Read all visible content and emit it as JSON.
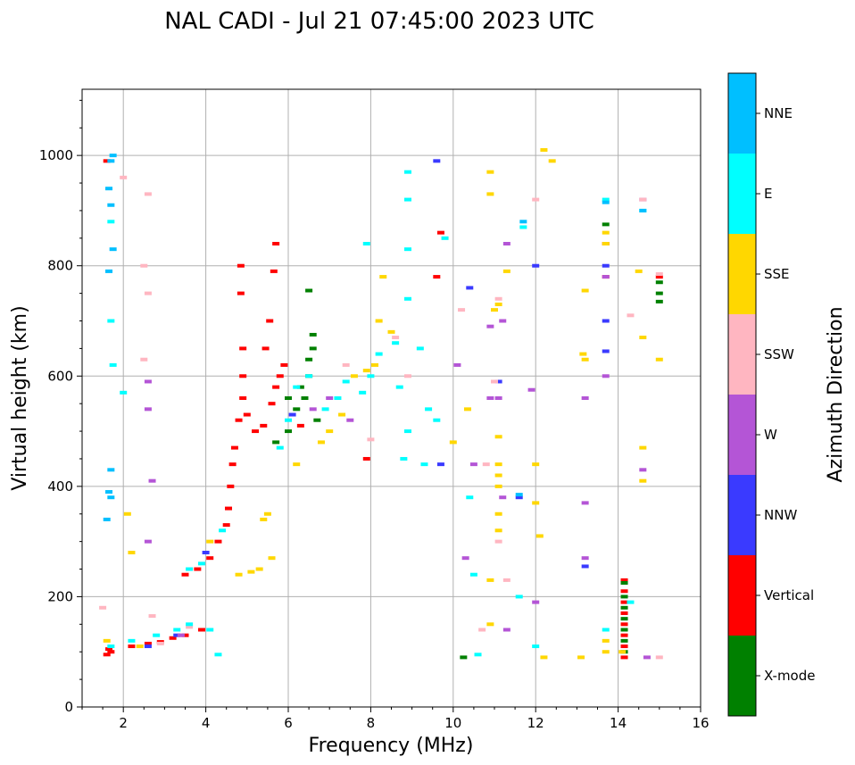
{
  "chart_data": {
    "type": "scatter",
    "title": "NAL CADI - Jul 21 07:45:00 2023 UTC",
    "xlabel": "Frequency (MHz)",
    "ylabel": "Virtual height (km)",
    "xlim": [
      1,
      16
    ],
    "ylim": [
      0,
      1120
    ],
    "xticks": [
      2,
      4,
      6,
      8,
      10,
      12,
      14,
      16
    ],
    "yticks": [
      0,
      200,
      400,
      600,
      800,
      1000
    ],
    "grid": true,
    "colorbar": {
      "title": "Azimuth Direction",
      "categories": [
        {
          "name": "X-mode",
          "color": "#008000"
        },
        {
          "name": "Vertical",
          "color": "#ff0000"
        },
        {
          "name": "NNW",
          "color": "#3a3aff"
        },
        {
          "name": "W",
          "color": "#b455d6"
        },
        {
          "name": "SSW",
          "color": "#ffb6c1"
        },
        {
          "name": "SSE",
          "color": "#ffd700"
        },
        {
          "name": "E",
          "color": "#00ffff"
        },
        {
          "name": "NNE",
          "color": "#00bfff"
        }
      ]
    },
    "series": [
      {
        "name": "Vertical",
        "points": [
          [
            1.6,
            95
          ],
          [
            1.65,
            105
          ],
          [
            1.7,
            100
          ],
          [
            2.2,
            110
          ],
          [
            2.6,
            115
          ],
          [
            2.9,
            118
          ],
          [
            3.2,
            125
          ],
          [
            3.5,
            130
          ],
          [
            3.9,
            140
          ],
          [
            3.5,
            240
          ],
          [
            3.8,
            250
          ],
          [
            4.1,
            270
          ],
          [
            4.3,
            300
          ],
          [
            4.5,
            330
          ],
          [
            4.55,
            360
          ],
          [
            4.6,
            400
          ],
          [
            4.65,
            440
          ],
          [
            4.7,
            470
          ],
          [
            4.8,
            520
          ],
          [
            4.9,
            560
          ],
          [
            4.9,
            600
          ],
          [
            4.9,
            650
          ],
          [
            4.85,
            750
          ],
          [
            4.85,
            800
          ],
          [
            5.0,
            530
          ],
          [
            5.2,
            500
          ],
          [
            5.4,
            510
          ],
          [
            5.6,
            550
          ],
          [
            5.7,
            580
          ],
          [
            5.8,
            600
          ],
          [
            5.9,
            620
          ],
          [
            5.45,
            650
          ],
          [
            5.55,
            700
          ],
          [
            5.65,
            790
          ],
          [
            5.7,
            840
          ],
          [
            6.3,
            510
          ],
          [
            7.9,
            450
          ],
          [
            9.7,
            860
          ],
          [
            9.6,
            780
          ],
          [
            1.6,
            990
          ],
          [
            13.7,
            840
          ],
          [
            13.7,
            780
          ],
          [
            14.15,
            230
          ],
          [
            14.15,
            210
          ],
          [
            14.15,
            190
          ],
          [
            14.15,
            170
          ],
          [
            14.15,
            150
          ],
          [
            14.15,
            130
          ],
          [
            14.15,
            110
          ],
          [
            14.15,
            90
          ],
          [
            15.0,
            780
          ]
        ]
      },
      {
        "name": "X-mode",
        "points": [
          [
            5.7,
            480
          ],
          [
            6.0,
            500
          ],
          [
            6.2,
            540
          ],
          [
            6.4,
            560
          ],
          [
            6.5,
            600
          ],
          [
            6.5,
            630
          ],
          [
            6.6,
            650
          ],
          [
            6.6,
            675
          ],
          [
            6.5,
            755
          ],
          [
            6.0,
            560
          ],
          [
            6.3,
            580
          ],
          [
            6.7,
            520
          ],
          [
            10.25,
            90
          ],
          [
            13.7,
            875
          ],
          [
            14.15,
            225
          ],
          [
            14.15,
            200
          ],
          [
            14.15,
            180
          ],
          [
            14.15,
            160
          ],
          [
            14.15,
            140
          ],
          [
            14.15,
            120
          ],
          [
            14.15,
            100
          ],
          [
            15.0,
            770
          ],
          [
            15.0,
            750
          ],
          [
            15.0,
            735
          ]
        ]
      },
      {
        "name": "NNW",
        "points": [
          [
            2.6,
            110
          ],
          [
            3.3,
            130
          ],
          [
            4.0,
            280
          ],
          [
            6.1,
            530
          ],
          [
            9.7,
            440
          ],
          [
            10.4,
            760
          ],
          [
            11.1,
            590
          ],
          [
            11.6,
            380
          ],
          [
            13.2,
            255
          ],
          [
            13.7,
            800
          ],
          [
            13.7,
            700
          ],
          [
            13.7,
            645
          ],
          [
            12.0,
            800
          ],
          [
            9.6,
            990
          ]
        ]
      },
      {
        "name": "W",
        "points": [
          [
            2.6,
            590
          ],
          [
            2.6,
            540
          ],
          [
            2.6,
            300
          ],
          [
            2.7,
            410
          ],
          [
            3.4,
            130
          ],
          [
            6.6,
            540
          ],
          [
            7.0,
            560
          ],
          [
            7.5,
            520
          ],
          [
            10.1,
            620
          ],
          [
            10.5,
            440
          ],
          [
            10.3,
            270
          ],
          [
            10.9,
            690
          ],
          [
            10.9,
            560
          ],
          [
            11.1,
            560
          ],
          [
            11.3,
            140
          ],
          [
            11.2,
            700
          ],
          [
            11.9,
            575
          ],
          [
            12.0,
            190
          ],
          [
            13.2,
            560
          ],
          [
            13.2,
            370
          ],
          [
            13.7,
            600
          ],
          [
            13.7,
            780
          ],
          [
            14.6,
            920
          ],
          [
            14.6,
            430
          ],
          [
            14.7,
            90
          ],
          [
            13.2,
            270
          ],
          [
            11.3,
            840
          ],
          [
            11.2,
            380
          ]
        ]
      },
      {
        "name": "SSW",
        "points": [
          [
            1.5,
            180
          ],
          [
            2.0,
            960
          ],
          [
            2.6,
            930
          ],
          [
            2.5,
            800
          ],
          [
            2.6,
            750
          ],
          [
            2.5,
            630
          ],
          [
            2.9,
            115
          ],
          [
            2.7,
            165
          ],
          [
            3.6,
            145
          ],
          [
            7.4,
            620
          ],
          [
            8.6,
            670
          ],
          [
            8.9,
            600
          ],
          [
            10.2,
            720
          ],
          [
            10.8,
            440
          ],
          [
            10.7,
            140
          ],
          [
            11.0,
            590
          ],
          [
            11.1,
            740
          ],
          [
            11.1,
            300
          ],
          [
            11.3,
            230
          ],
          [
            12.0,
            920
          ],
          [
            14.3,
            710
          ],
          [
            14.6,
            920
          ],
          [
            15.0,
            90
          ],
          [
            15.0,
            785
          ],
          [
            8.0,
            485
          ]
        ]
      },
      {
        "name": "SSE",
        "points": [
          [
            1.6,
            120
          ],
          [
            2.1,
            350
          ],
          [
            2.2,
            280
          ],
          [
            2.4,
            110
          ],
          [
            4.1,
            300
          ],
          [
            4.8,
            240
          ],
          [
            5.1,
            245
          ],
          [
            5.3,
            250
          ],
          [
            5.6,
            270
          ],
          [
            5.4,
            340
          ],
          [
            5.5,
            350
          ],
          [
            6.2,
            440
          ],
          [
            6.8,
            480
          ],
          [
            7.0,
            500
          ],
          [
            7.3,
            530
          ],
          [
            7.6,
            600
          ],
          [
            7.9,
            610
          ],
          [
            8.1,
            620
          ],
          [
            8.2,
            700
          ],
          [
            8.5,
            680
          ],
          [
            8.3,
            780
          ],
          [
            10.0,
            480
          ],
          [
            10.35,
            540
          ],
          [
            10.9,
            970
          ],
          [
            10.9,
            930
          ],
          [
            11.0,
            720
          ],
          [
            10.9,
            230
          ],
          [
            10.9,
            150
          ],
          [
            11.1,
            440
          ],
          [
            11.1,
            420
          ],
          [
            11.1,
            400
          ],
          [
            11.1,
            350
          ],
          [
            11.1,
            320
          ],
          [
            11.1,
            490
          ],
          [
            11.1,
            730
          ],
          [
            11.3,
            790
          ],
          [
            12.0,
            440
          ],
          [
            12.0,
            370
          ],
          [
            12.1,
            310
          ],
          [
            12.2,
            1010
          ],
          [
            12.4,
            990
          ],
          [
            13.1,
            90
          ],
          [
            13.15,
            640
          ],
          [
            13.2,
            630
          ],
          [
            13.7,
            120
          ],
          [
            13.7,
            100
          ],
          [
            13.7,
            860
          ],
          [
            13.7,
            840
          ],
          [
            14.1,
            100
          ],
          [
            14.5,
            790
          ],
          [
            14.6,
            470
          ],
          [
            14.6,
            410
          ],
          [
            14.6,
            670
          ],
          [
            15.0,
            630
          ],
          [
            12.2,
            90
          ],
          [
            13.2,
            755
          ]
        ]
      },
      {
        "name": "E",
        "points": [
          [
            1.7,
            110
          ],
          [
            2.2,
            120
          ],
          [
            2.8,
            130
          ],
          [
            3.3,
            140
          ],
          [
            3.6,
            150
          ],
          [
            4.1,
            140
          ],
          [
            4.3,
            95
          ],
          [
            3.6,
            250
          ],
          [
            3.9,
            260
          ],
          [
            4.4,
            320
          ],
          [
            5.8,
            470
          ],
          [
            6.0,
            520
          ],
          [
            6.2,
            580
          ],
          [
            6.5,
            600
          ],
          [
            6.9,
            540
          ],
          [
            7.2,
            560
          ],
          [
            7.4,
            590
          ],
          [
            7.8,
            570
          ],
          [
            8.0,
            600
          ],
          [
            8.2,
            640
          ],
          [
            8.6,
            660
          ],
          [
            8.7,
            580
          ],
          [
            8.9,
            500
          ],
          [
            8.8,
            450
          ],
          [
            9.3,
            440
          ],
          [
            9.4,
            540
          ],
          [
            9.6,
            520
          ],
          [
            9.2,
            650
          ],
          [
            8.9,
            740
          ],
          [
            8.9,
            830
          ],
          [
            8.9,
            920
          ],
          [
            8.9,
            970
          ],
          [
            7.9,
            840
          ],
          [
            9.8,
            850
          ],
          [
            10.4,
            380
          ],
          [
            10.6,
            95
          ],
          [
            11.6,
            200
          ],
          [
            11.7,
            870
          ],
          [
            12.0,
            110
          ],
          [
            13.7,
            920
          ],
          [
            13.7,
            140
          ],
          [
            14.3,
            190
          ],
          [
            14.6,
            900
          ],
          [
            1.7,
            700
          ],
          [
            1.75,
            620
          ],
          [
            2.0,
            570
          ],
          [
            1.7,
            880
          ],
          [
            10.5,
            240
          ]
        ]
      },
      {
        "name": "NNE",
        "points": [
          [
            1.75,
            1000
          ],
          [
            1.7,
            990
          ],
          [
            1.65,
            940
          ],
          [
            1.7,
            910
          ],
          [
            1.75,
            830
          ],
          [
            1.65,
            790
          ],
          [
            1.7,
            430
          ],
          [
            1.65,
            390
          ],
          [
            1.6,
            340
          ],
          [
            1.7,
            380
          ],
          [
            13.7,
            915
          ],
          [
            14.6,
            900
          ],
          [
            11.6,
            385
          ],
          [
            11.7,
            880
          ]
        ]
      }
    ]
  }
}
